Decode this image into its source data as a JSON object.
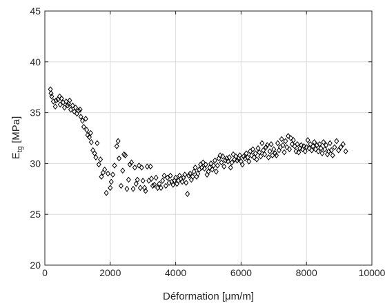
{
  "chart_data": {
    "type": "scatter",
    "title": "",
    "xlabel": "Déformation [μm/m]",
    "ylabel_main": "E",
    "ylabel_sub": "tg",
    "ylabel_unit": " [MPa]",
    "xlim": [
      0,
      10000
    ],
    "ylim": [
      20,
      45
    ],
    "xticks": [
      0,
      2000,
      4000,
      6000,
      8000,
      10000
    ],
    "yticks": [
      20,
      25,
      30,
      35,
      40,
      45
    ],
    "grid": true,
    "marker": "diamond-open",
    "marker_color": "#000000",
    "series": [
      {
        "points": [
          [
            170,
            37.3
          ],
          [
            190,
            36.9
          ],
          [
            210,
            36.6
          ],
          [
            260,
            36.1
          ],
          [
            320,
            35.6
          ],
          [
            340,
            36.2
          ],
          [
            400,
            36.3
          ],
          [
            450,
            36.6
          ],
          [
            470,
            35.8
          ],
          [
            510,
            36.4
          ],
          [
            560,
            36.0
          ],
          [
            600,
            35.5
          ],
          [
            650,
            36.1
          ],
          [
            700,
            35.7
          ],
          [
            720,
            35.9
          ],
          [
            760,
            36.2
          ],
          [
            790,
            35.3
          ],
          [
            850,
            35.7
          ],
          [
            900,
            35.1
          ],
          [
            940,
            35.5
          ],
          [
            980,
            34.9
          ],
          [
            1030,
            35.2
          ],
          [
            1080,
            35.3
          ],
          [
            1100,
            34.6
          ],
          [
            1150,
            34.2
          ],
          [
            1190,
            33.6
          ],
          [
            1250,
            34.4
          ],
          [
            1280,
            33.3
          ],
          [
            1310,
            32.8
          ],
          [
            1360,
            32.6
          ],
          [
            1400,
            33.0
          ],
          [
            1420,
            32.1
          ],
          [
            1470,
            31.3
          ],
          [
            1520,
            31.0
          ],
          [
            1560,
            30.6
          ],
          [
            1600,
            32.0
          ],
          [
            1650,
            29.9
          ],
          [
            1700,
            30.4
          ],
          [
            1730,
            28.7
          ],
          [
            1780,
            29.1
          ],
          [
            1830,
            29.4
          ],
          [
            1880,
            27.1
          ],
          [
            1930,
            29.0
          ],
          [
            2000,
            27.6
          ],
          [
            2030,
            28.2
          ],
          [
            2080,
            28.9
          ],
          [
            2130,
            29.8
          ],
          [
            2200,
            31.7
          ],
          [
            2240,
            32.2
          ],
          [
            2270,
            30.5
          ],
          [
            2330,
            27.8
          ],
          [
            2380,
            29.3
          ],
          [
            2420,
            30.9
          ],
          [
            2460,
            30.8
          ],
          [
            2510,
            27.5
          ],
          [
            2560,
            28.4
          ],
          [
            2600,
            29.9
          ],
          [
            2650,
            30.1
          ],
          [
            2700,
            27.5
          ],
          [
            2750,
            29.6
          ],
          [
            2790,
            28.0
          ],
          [
            2830,
            28.4
          ],
          [
            2880,
            29.8
          ],
          [
            2920,
            27.6
          ],
          [
            2960,
            29.6
          ],
          [
            3000,
            28.3
          ],
          [
            3050,
            27.6
          ],
          [
            3080,
            27.3
          ],
          [
            3130,
            29.7
          ],
          [
            3180,
            28.3
          ],
          [
            3230,
            29.7
          ],
          [
            3260,
            28.5
          ],
          [
            3300,
            27.8
          ],
          [
            3350,
            27.9
          ],
          [
            3400,
            28.6
          ],
          [
            3450,
            27.6
          ],
          [
            3500,
            28.0
          ],
          [
            3550,
            27.6
          ],
          [
            3600,
            28.3
          ],
          [
            3650,
            28.8
          ],
          [
            3700,
            27.8
          ],
          [
            3750,
            28.6
          ],
          [
            3800,
            28.1
          ],
          [
            3840,
            28.8
          ],
          [
            3880,
            28.2
          ],
          [
            3920,
            27.9
          ],
          [
            3960,
            28.3
          ],
          [
            4000,
            28.6
          ],
          [
            4040,
            28.0
          ],
          [
            4080,
            28.3
          ],
          [
            4120,
            28.8
          ],
          [
            4160,
            28.5
          ],
          [
            4200,
            28.2
          ],
          [
            4240,
            28.6
          ],
          [
            4280,
            28.9
          ],
          [
            4320,
            28.1
          ],
          [
            4360,
            27.0
          ],
          [
            4400,
            28.8
          ],
          [
            4440,
            29.0
          ],
          [
            4480,
            28.4
          ],
          [
            4520,
            28.7
          ],
          [
            4560,
            29.2
          ],
          [
            4600,
            29.6
          ],
          [
            4640,
            28.7
          ],
          [
            4680,
            29.0
          ],
          [
            4720,
            29.4
          ],
          [
            4760,
            29.9
          ],
          [
            4800,
            29.6
          ],
          [
            4840,
            30.1
          ],
          [
            4880,
            29.5
          ],
          [
            4920,
            29.9
          ],
          [
            4960,
            28.9
          ],
          [
            5000,
            29.2
          ],
          [
            5040,
            29.6
          ],
          [
            5080,
            30.0
          ],
          [
            5120,
            29.4
          ],
          [
            5160,
            29.8
          ],
          [
            5200,
            30.3
          ],
          [
            5240,
            29.2
          ],
          [
            5280,
            29.8
          ],
          [
            5320,
            30.5
          ],
          [
            5360,
            30.8
          ],
          [
            5400,
            30.1
          ],
          [
            5440,
            30.7
          ],
          [
            5480,
            29.7
          ],
          [
            5520,
            30.3
          ],
          [
            5560,
            30.5
          ],
          [
            5600,
            30.2
          ],
          [
            5640,
            30.6
          ],
          [
            5680,
            29.6
          ],
          [
            5720,
            30.1
          ],
          [
            5760,
            30.9
          ],
          [
            5800,
            30.4
          ],
          [
            5840,
            30.7
          ],
          [
            5880,
            30.3
          ],
          [
            5920,
            30.5
          ],
          [
            5960,
            30.8
          ],
          [
            6000,
            30.2
          ],
          [
            6040,
            29.9
          ],
          [
            6080,
            30.7
          ],
          [
            6120,
            30.5
          ],
          [
            6160,
            31.0
          ],
          [
            6200,
            30.6
          ],
          [
            6240,
            30.2
          ],
          [
            6280,
            31.2
          ],
          [
            6320,
            30.8
          ],
          [
            6360,
            31.4
          ],
          [
            6400,
            30.6
          ],
          [
            6440,
            31.0
          ],
          [
            6480,
            30.4
          ],
          [
            6520,
            31.5
          ],
          [
            6560,
            31.1
          ],
          [
            6600,
            30.7
          ],
          [
            6640,
            32.0
          ],
          [
            6680,
            31.3
          ],
          [
            6720,
            30.9
          ],
          [
            6760,
            31.6
          ],
          [
            6800,
            31.8
          ],
          [
            6840,
            30.6
          ],
          [
            6880,
            31.2
          ],
          [
            6920,
            31.9
          ],
          [
            6960,
            30.8
          ],
          [
            7000,
            31.4
          ],
          [
            7040,
            31.0
          ],
          [
            7080,
            30.8
          ],
          [
            7120,
            32.0
          ],
          [
            7160,
            31.3
          ],
          [
            7200,
            31.6
          ],
          [
            7240,
            32.4
          ],
          [
            7280,
            31.8
          ],
          [
            7320,
            31.1
          ],
          [
            7360,
            32.2
          ],
          [
            7400,
            31.6
          ],
          [
            7440,
            32.7
          ],
          [
            7480,
            31.4
          ],
          [
            7520,
            32.5
          ],
          [
            7560,
            31.9
          ],
          [
            7600,
            32.3
          ],
          [
            7640,
            31.7
          ],
          [
            7680,
            31.2
          ],
          [
            7720,
            31.9
          ],
          [
            7760,
            31.1
          ],
          [
            7800,
            31.5
          ],
          [
            7840,
            31.8
          ],
          [
            7880,
            31.4
          ],
          [
            7920,
            31.7
          ],
          [
            7960,
            31.2
          ],
          [
            8000,
            31.6
          ],
          [
            8040,
            32.3
          ],
          [
            8080,
            31.5
          ],
          [
            8120,
            31.9
          ],
          [
            8160,
            31.3
          ],
          [
            8200,
            31.7
          ],
          [
            8240,
            32.1
          ],
          [
            8280,
            31.4
          ],
          [
            8320,
            31.8
          ],
          [
            8360,
            31.2
          ],
          [
            8400,
            31.9
          ],
          [
            8440,
            31.5
          ],
          [
            8480,
            31.0
          ],
          [
            8520,
            32.1
          ],
          [
            8560,
            31.4
          ],
          [
            8600,
            31.8
          ],
          [
            8640,
            30.9
          ],
          [
            8680,
            31.2
          ],
          [
            8720,
            32.0
          ],
          [
            8760,
            31.3
          ],
          [
            8800,
            30.8
          ],
          [
            8860,
            31.6
          ],
          [
            8920,
            32.2
          ],
          [
            8980,
            31.3
          ],
          [
            9050,
            31.6
          ],
          [
            9120,
            31.9
          ],
          [
            9200,
            31.2
          ]
        ]
      }
    ]
  }
}
